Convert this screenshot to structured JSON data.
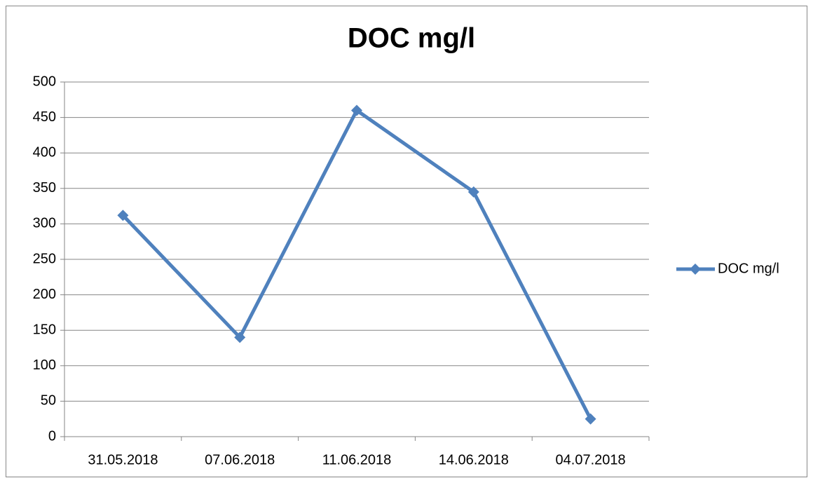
{
  "chart_data": {
    "type": "line",
    "title": "DOC mg/l",
    "categories": [
      "31.05.2018",
      "07.06.2018",
      "11.06.2018",
      "14.06.2018",
      "04.07.2018"
    ],
    "series": [
      {
        "name": "DOC mg/l",
        "color": "#4f81bd",
        "values": [
          312,
          140,
          460,
          345,
          25
        ]
      }
    ],
    "ylim": [
      0,
      500
    ],
    "yticks": [
      0,
      50,
      100,
      150,
      200,
      250,
      300,
      350,
      400,
      450,
      500
    ],
    "grid": true,
    "legend": "right"
  }
}
